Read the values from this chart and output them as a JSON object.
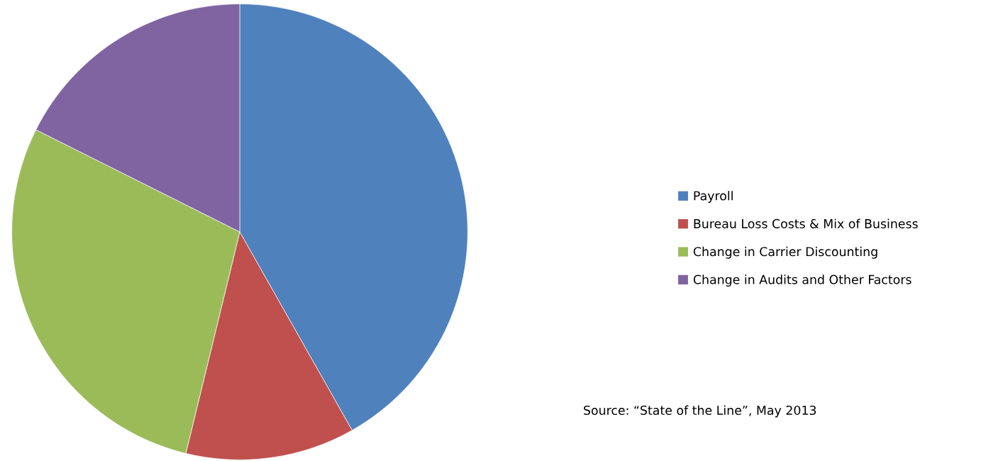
{
  "chart_data": {
    "type": "pie",
    "categories": [
      "Payroll",
      "Bureau Loss Costs & Mix of Business",
      "Change in Carrier Discounting",
      "Change in Audits and Other Factors"
    ],
    "values": [
      41.8,
      12.0,
      28.6,
      17.6
    ],
    "colors": [
      "#4f81bd",
      "#c0504d",
      "#9bbb59",
      "#8064a2"
    ],
    "legend": "right",
    "annotations": [
      "Source: “State of the Line”, May 2013"
    ]
  }
}
